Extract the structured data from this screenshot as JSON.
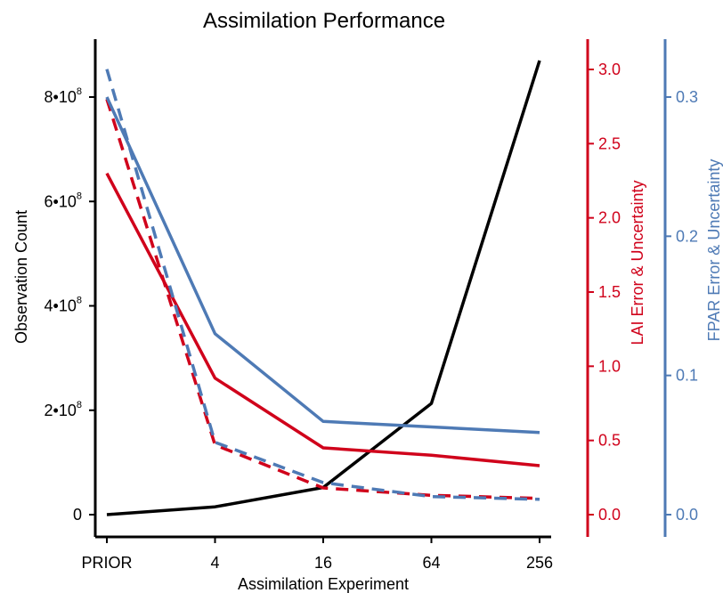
{
  "chart_data": {
    "type": "line",
    "title": "Assimilation Performance",
    "xlabel": "Assimilation Experiment",
    "categories": [
      "PRIOR",
      "4",
      "16",
      "64",
      "256"
    ],
    "axes": {
      "left": {
        "label": "Observation Count",
        "ylim": [
          0,
          900000000
        ],
        "ticks": [
          {
            "value": 0,
            "base": "0",
            "exp": ""
          },
          {
            "value": 200000000,
            "base": "2•10",
            "exp": "8"
          },
          {
            "value": 400000000,
            "base": "4•10",
            "exp": "8"
          },
          {
            "value": 600000000,
            "base": "6•10",
            "exp": "8"
          },
          {
            "value": 800000000,
            "base": "8•10",
            "exp": "8"
          }
        ],
        "color": "#000000"
      },
      "lai": {
        "label": "LAI Error & Uncertainty",
        "ylim": [
          0,
          3.0
        ],
        "ticks": [
          "0.0",
          "0.5",
          "1.0",
          "1.5",
          "2.0",
          "2.5",
          "3.0"
        ],
        "color": "#d0021b"
      },
      "fpar": {
        "label": "FPAR Error & Uncertainty",
        "ylim": [
          0,
          0.33
        ],
        "ticks": [
          "0.0",
          "0.1",
          "0.2",
          "0.3"
        ],
        "color": "#4e7ab5"
      }
    },
    "series": [
      {
        "axis": "left",
        "style": "solid",
        "color": "#000000",
        "values": [
          0,
          15000000,
          52000000,
          213000000,
          870000000
        ]
      },
      {
        "axis": "lai",
        "style": "solid",
        "color": "#d0021b",
        "values": [
          2.3,
          0.92,
          0.45,
          0.4,
          0.33
        ]
      },
      {
        "axis": "lai",
        "style": "dashed",
        "color": "#d0021b",
        "values": [
          2.8,
          0.47,
          0.18,
          0.13,
          0.11
        ]
      },
      {
        "axis": "fpar",
        "style": "solid",
        "color": "#4e7ab5",
        "values": [
          0.3,
          0.13,
          0.067,
          0.063,
          0.059
        ]
      },
      {
        "axis": "fpar",
        "style": "dashed",
        "color": "#4e7ab5",
        "values": [
          0.32,
          0.052,
          0.023,
          0.013,
          0.011
        ]
      }
    ]
  }
}
